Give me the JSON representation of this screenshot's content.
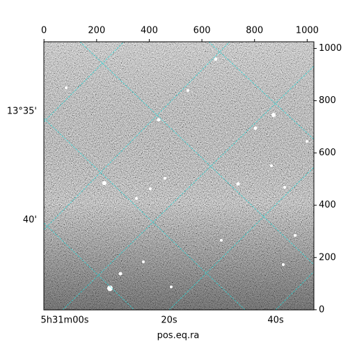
{
  "chart_data": {
    "type": "image",
    "xlim": [
      -0.5,
      1025.5
    ],
    "xticks": [
      0,
      200,
      400,
      600,
      800,
      1000
    ],
    "ylim": [
      -0.5,
      1025.5
    ],
    "yticks": [
      0,
      200,
      400,
      600,
      800,
      1000
    ],
    "x_label": "pos.eq.ra",
    "ra_labels": [
      "5h31m00s",
      "20s",
      "40s"
    ],
    "dec_labels": [
      "13°35'",
      "40'"
    ],
    "grid_color": "#2fd3d3"
  }
}
